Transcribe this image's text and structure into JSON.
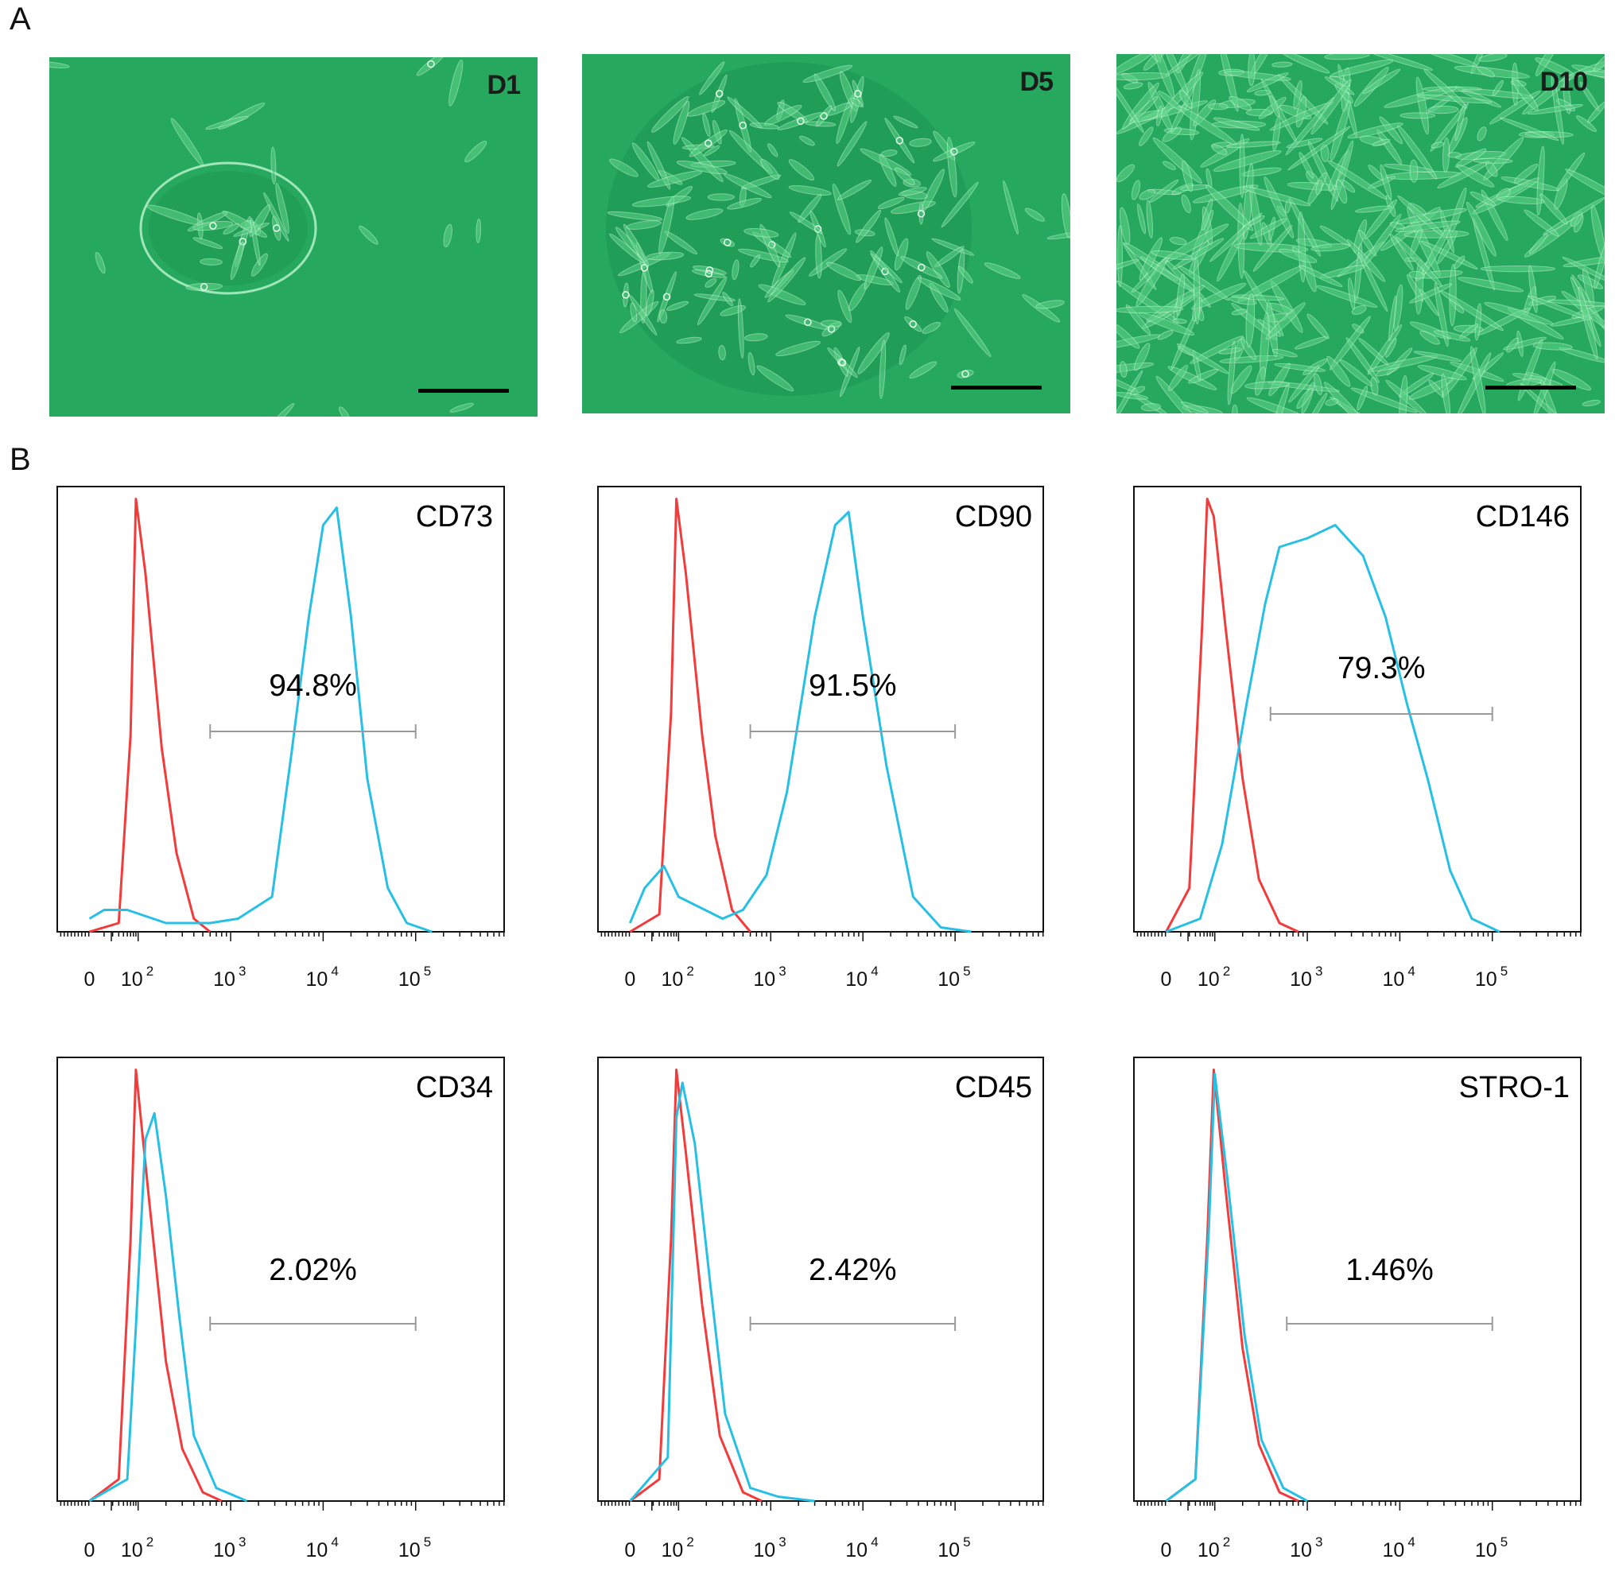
{
  "panel_a": {
    "letter": "A",
    "images": [
      {
        "day": "D1"
      },
      {
        "day": "D5"
      },
      {
        "day": "D10"
      }
    ]
  },
  "panel_b": {
    "letter": "B"
  },
  "colors": {
    "isotype": "#f23c3c",
    "marker": "#27c0e4",
    "gate": "#9a9a9a",
    "micro_bg": "#22a35a"
  },
  "chart_data": [
    {
      "type": "line",
      "marker": "CD73",
      "percent_label": "94.8%",
      "xscale": "log",
      "x_ticks": [
        "0",
        "10^2",
        "10^3",
        "10^4",
        "10^5"
      ],
      "gate": [
        600,
        100000
      ],
      "series": [
        {
          "color": "#f23c3c",
          "points": [
            [
              0,
              0
            ],
            [
              40,
              0.02
            ],
            [
              70,
              0.45
            ],
            [
              90,
              0.99
            ],
            [
              120,
              0.82
            ],
            [
              180,
              0.42
            ],
            [
              260,
              0.18
            ],
            [
              400,
              0.03
            ],
            [
              600,
              0
            ]
          ]
        },
        {
          "color": "#27c0e4",
          "points": [
            [
              0,
              0.03
            ],
            [
              20,
              0.05
            ],
            [
              60,
              0.05
            ],
            [
              200,
              0.02
            ],
            [
              600,
              0.02
            ],
            [
              1200,
              0.03
            ],
            [
              2800,
              0.08
            ],
            [
              4500,
              0.4
            ],
            [
              7000,
              0.72
            ],
            [
              10000,
              0.93
            ],
            [
              14000,
              0.97
            ],
            [
              20000,
              0.72
            ],
            [
              30000,
              0.35
            ],
            [
              50000,
              0.1
            ],
            [
              80000,
              0.02
            ],
            [
              150000,
              0
            ]
          ]
        }
      ]
    },
    {
      "type": "line",
      "marker": "CD90",
      "percent_label": "91.5%",
      "xscale": "log",
      "x_ticks": [
        "0",
        "10^2",
        "10^3",
        "10^4",
        "10^5"
      ],
      "gate": [
        600,
        100000
      ],
      "series": [
        {
          "color": "#f23c3c",
          "points": [
            [
              0,
              0
            ],
            [
              40,
              0.04
            ],
            [
              70,
              0.5
            ],
            [
              90,
              0.99
            ],
            [
              120,
              0.82
            ],
            [
              180,
              0.45
            ],
            [
              250,
              0.22
            ],
            [
              380,
              0.05
            ],
            [
              600,
              0
            ]
          ]
        },
        {
          "color": "#27c0e4",
          "points": [
            [
              0,
              0.02
            ],
            [
              20,
              0.1
            ],
            [
              50,
              0.15
            ],
            [
              100,
              0.08
            ],
            [
              300,
              0.03
            ],
            [
              500,
              0.05
            ],
            [
              900,
              0.13
            ],
            [
              1500,
              0.32
            ],
            [
              3000,
              0.72
            ],
            [
              5000,
              0.93
            ],
            [
              7000,
              0.96
            ],
            [
              10000,
              0.72
            ],
            [
              18000,
              0.38
            ],
            [
              35000,
              0.08
            ],
            [
              70000,
              0.01
            ],
            [
              150000,
              0
            ]
          ]
        }
      ]
    },
    {
      "type": "line",
      "marker": "CD146",
      "percent_label": "79.3%",
      "xscale": "log",
      "x_ticks": [
        "0",
        "10^2",
        "10^3",
        "10^4",
        "10^5"
      ],
      "gate": [
        400,
        100000
      ],
      "series": [
        {
          "color": "#f23c3c",
          "points": [
            [
              0,
              0
            ],
            [
              30,
              0.1
            ],
            [
              55,
              0.7
            ],
            [
              70,
              0.99
            ],
            [
              95,
              0.95
            ],
            [
              130,
              0.7
            ],
            [
              200,
              0.35
            ],
            [
              300,
              0.12
            ],
            [
              500,
              0.02
            ],
            [
              800,
              0
            ]
          ]
        },
        {
          "color": "#27c0e4",
          "points": [
            [
              0,
              0
            ],
            [
              50,
              0.03
            ],
            [
              120,
              0.2
            ],
            [
              220,
              0.52
            ],
            [
              350,
              0.75
            ],
            [
              500,
              0.88
            ],
            [
              1000,
              0.9
            ],
            [
              2000,
              0.93
            ],
            [
              4000,
              0.86
            ],
            [
              7000,
              0.72
            ],
            [
              12000,
              0.52
            ],
            [
              20000,
              0.35
            ],
            [
              35000,
              0.14
            ],
            [
              60000,
              0.03
            ],
            [
              120000,
              0
            ]
          ]
        }
      ]
    },
    {
      "type": "line",
      "marker": "CD34",
      "percent_label": "2.02%",
      "xscale": "log",
      "x_ticks": [
        "0",
        "10^2",
        "10^3",
        "10^4",
        "10^5"
      ],
      "gate": [
        600,
        100000
      ],
      "series": [
        {
          "color": "#f23c3c",
          "points": [
            [
              0,
              0
            ],
            [
              40,
              0.05
            ],
            [
              70,
              0.6
            ],
            [
              90,
              0.99
            ],
            [
              130,
              0.7
            ],
            [
              200,
              0.32
            ],
            [
              300,
              0.12
            ],
            [
              500,
              0.02
            ],
            [
              800,
              0
            ]
          ]
        },
        {
          "color": "#27c0e4",
          "points": [
            [
              0,
              0
            ],
            [
              60,
              0.05
            ],
            [
              90,
              0.4
            ],
            [
              120,
              0.83
            ],
            [
              150,
              0.89
            ],
            [
              200,
              0.7
            ],
            [
              280,
              0.42
            ],
            [
              400,
              0.15
            ],
            [
              700,
              0.03
            ],
            [
              1500,
              0
            ]
          ]
        }
      ]
    },
    {
      "type": "line",
      "marker": "CD45",
      "percent_label": "2.42%",
      "xscale": "log",
      "x_ticks": [
        "0",
        "10^2",
        "10^3",
        "10^4",
        "10^5"
      ],
      "gate": [
        600,
        100000
      ],
      "series": [
        {
          "color": "#f23c3c",
          "points": [
            [
              0,
              0
            ],
            [
              40,
              0.05
            ],
            [
              70,
              0.6
            ],
            [
              90,
              0.99
            ],
            [
              120,
              0.8
            ],
            [
              180,
              0.45
            ],
            [
              280,
              0.15
            ],
            [
              500,
              0.02
            ],
            [
              800,
              0
            ]
          ]
        },
        {
          "color": "#27c0e4",
          "points": [
            [
              0,
              0
            ],
            [
              60,
              0.1
            ],
            [
              90,
              0.88
            ],
            [
              110,
              0.96
            ],
            [
              150,
              0.82
            ],
            [
              220,
              0.5
            ],
            [
              320,
              0.2
            ],
            [
              600,
              0.03
            ],
            [
              1200,
              0.01
            ],
            [
              3000,
              0
            ]
          ]
        }
      ]
    },
    {
      "type": "line",
      "marker": "STRO-1",
      "percent_label": "1.46%",
      "xscale": "log",
      "x_ticks": [
        "0",
        "10^2",
        "10^3",
        "10^4",
        "10^5"
      ],
      "gate": [
        600,
        100000
      ],
      "series": [
        {
          "color": "#f23c3c",
          "points": [
            [
              0,
              0
            ],
            [
              40,
              0.05
            ],
            [
              70,
              0.6
            ],
            [
              95,
              0.99
            ],
            [
              130,
              0.72
            ],
            [
              200,
              0.35
            ],
            [
              300,
              0.13
            ],
            [
              500,
              0.02
            ],
            [
              800,
              0
            ]
          ]
        },
        {
          "color": "#27c0e4",
          "points": [
            [
              0,
              0
            ],
            [
              40,
              0.05
            ],
            [
              75,
              0.62
            ],
            [
              100,
              0.98
            ],
            [
              135,
              0.75
            ],
            [
              210,
              0.38
            ],
            [
              320,
              0.14
            ],
            [
              550,
              0.03
            ],
            [
              1000,
              0
            ]
          ]
        }
      ]
    }
  ]
}
